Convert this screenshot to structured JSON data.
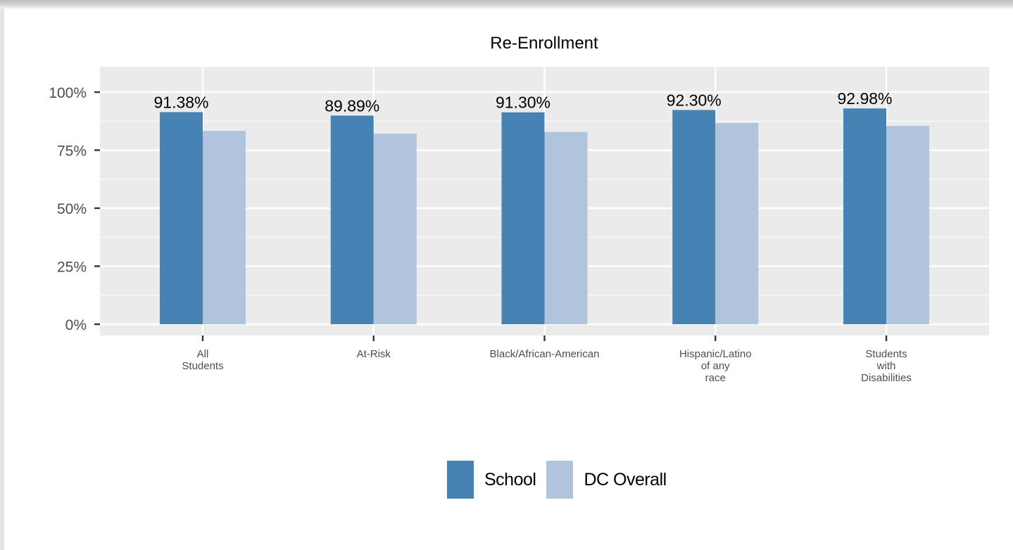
{
  "chart_data": {
    "type": "bar",
    "title": "Re-Enrollment",
    "xlabel": "",
    "ylabel": "",
    "categories": [
      "All\nStudents",
      "At-Risk",
      "Black/African-American",
      "Hispanic/Latino\nof any\nrace",
      "Students\nwith\nDisabilities"
    ],
    "series": [
      {
        "name": "School",
        "color": "#4682b4",
        "values": [
          91.38,
          89.89,
          91.3,
          92.3,
          92.98
        ],
        "labels": [
          "91.38%",
          "89.89%",
          "91.30%",
          "92.30%",
          "92.98%"
        ]
      },
      {
        "name": "DC Overall",
        "color": "#b0c4de",
        "values": [
          83.3,
          82.1,
          82.8,
          86.7,
          85.4
        ]
      }
    ],
    "ylim": [
      0,
      105
    ],
    "yticks": [
      0,
      25,
      50,
      75,
      100
    ],
    "ytick_labels": [
      "0%",
      "25%",
      "50%",
      "75%",
      "100%"
    ],
    "grid": true,
    "panel_background": "#ebebeb",
    "legend_position": "bottom"
  }
}
